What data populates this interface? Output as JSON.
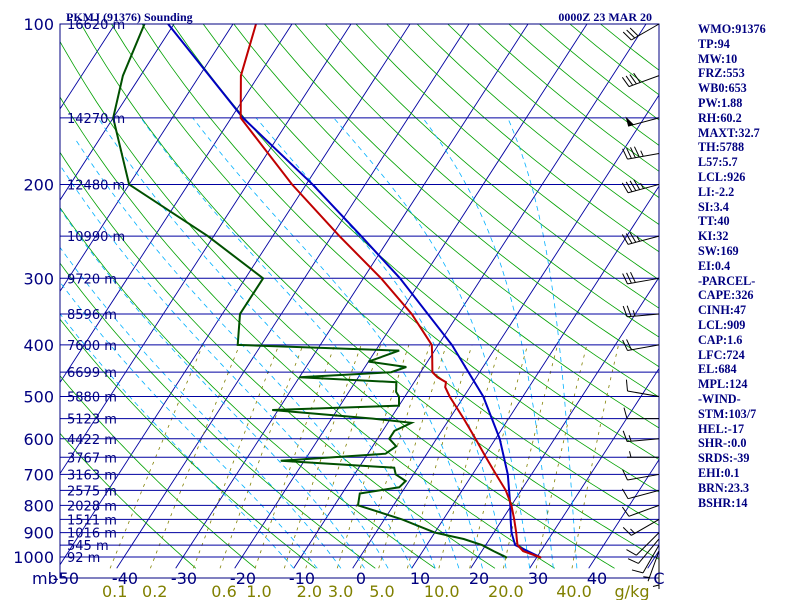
{
  "chart_data": {
    "type": "line",
    "title": "PKMJ (91376) Sounding",
    "time_label": "0000Z 23 MAR 20",
    "xlabel_units": "mb",
    "mixing_ratio_units": "g/kg",
    "pressure_levels": [
      100,
      200,
      300,
      400,
      500,
      600,
      700,
      800,
      900,
      1000
    ],
    "temperature_ticks": [
      -50,
      -40,
      -30,
      -20,
      -10,
      0,
      10,
      20,
      30,
      40
    ],
    "temperature_tick_labels": [
      "-50",
      "-40",
      "-30",
      "-20",
      "-10",
      "0",
      "10",
      "20",
      "30",
      "40"
    ],
    "mixing_ratio_ticks": [
      {
        "label": "0.1",
        "value": 0.1
      },
      {
        "label": "0.2",
        "value": 0.2
      },
      {
        "label": "0.6",
        "value": 0.6
      },
      {
        "label": "1.0",
        "value": 1.0
      },
      {
        "label": "2.0",
        "value": 2.0
      },
      {
        "label": "3.0",
        "value": 3.0
      },
      {
        "label": "5.0",
        "value": 5.0
      },
      {
        "label": "10.0",
        "value": 10.0
      },
      {
        "label": "20.0",
        "value": 20.0
      },
      {
        "label": "40.0",
        "value": 40.0
      }
    ],
    "heights": [
      {
        "p": 100,
        "label": "16620 m"
      },
      {
        "p": 150,
        "label": "14270 m"
      },
      {
        "p": 200,
        "label": "12480 m"
      },
      {
        "p": 250,
        "label": "10990 m"
      },
      {
        "p": 300,
        "label": "9720 m"
      },
      {
        "p": 350,
        "label": "8596 m"
      },
      {
        "p": 400,
        "label": "7600 m"
      },
      {
        "p": 450,
        "label": "6699 m"
      },
      {
        "p": 500,
        "label": "5880 m"
      },
      {
        "p": 550,
        "label": "5123 m"
      },
      {
        "p": 600,
        "label": "4422 m"
      },
      {
        "p": 650,
        "label": "3767 m"
      },
      {
        "p": 700,
        "label": "3163 m"
      },
      {
        "p": 750,
        "label": "2575 m"
      },
      {
        "p": 800,
        "label": "2028 m"
      },
      {
        "p": 850,
        "label": "1511 m"
      },
      {
        "p": 900,
        "label": "1016 m"
      },
      {
        "p": 950,
        "label": "545 m"
      },
      {
        "p": 1000,
        "label": "92 m"
      }
    ],
    "temperature_profile": [
      [
        1003,
        30.8
      ],
      [
        975,
        27.0
      ],
      [
        950,
        25.4
      ],
      [
        925,
        24.6
      ],
      [
        900,
        23.8
      ],
      [
        850,
        22.0
      ],
      [
        800,
        20.0
      ],
      [
        750,
        17.4
      ],
      [
        700,
        14.0
      ],
      [
        650,
        10.4
      ],
      [
        600,
        6.6
      ],
      [
        550,
        2.4
      ],
      [
        500,
        -2.4
      ],
      [
        480,
        -4.2
      ],
      [
        470,
        -4.6
      ],
      [
        460,
        -6.6
      ],
      [
        450,
        -8.0
      ],
      [
        420,
        -9.8
      ],
      [
        400,
        -11.1
      ],
      [
        350,
        -17.9
      ],
      [
        300,
        -27.0
      ],
      [
        250,
        -38.7
      ],
      [
        200,
        -52.4
      ],
      [
        150,
        -68.4
      ],
      [
        125,
        -73.0
      ],
      [
        100,
        -76.1
      ]
    ],
    "dewpoint_profile": [
      [
        1003,
        25.0
      ],
      [
        975,
        22.0
      ],
      [
        950,
        19.4
      ],
      [
        925,
        15.6
      ],
      [
        900,
        10.0
      ],
      [
        850,
        3.0
      ],
      [
        800,
        -6.0
      ],
      [
        760,
        -7.0
      ],
      [
        740,
        -1.0
      ],
      [
        720,
        -0.6
      ],
      [
        700,
        -3.0
      ],
      [
        680,
        -4.0
      ],
      [
        660,
        -24.0
      ],
      [
        640,
        -7.0
      ],
      [
        620,
        -6.0
      ],
      [
        600,
        -8.0
      ],
      [
        580,
        -8.0
      ],
      [
        560,
        -6.0
      ],
      [
        550,
        -13.0
      ],
      [
        530,
        -31.0
      ],
      [
        520,
        -10.0
      ],
      [
        500,
        -11.0
      ],
      [
        490,
        -12.0
      ],
      [
        470,
        -13.0
      ],
      [
        460,
        -30.0
      ],
      [
        450,
        -15.0
      ],
      [
        440,
        -13.0
      ],
      [
        430,
        -20.0
      ],
      [
        410,
        -16.0
      ],
      [
        400,
        -44.0
      ],
      [
        350,
        -47.0
      ],
      [
        300,
        -47.0
      ],
      [
        250,
        -61.0
      ],
      [
        200,
        -80.0
      ],
      [
        150,
        -90.0
      ],
      [
        125,
        -93.0
      ],
      [
        100,
        -95.0
      ]
    ],
    "parcel_profile": [
      [
        1003,
        30.8
      ],
      [
        950,
        25.0
      ],
      [
        900,
        23.0
      ],
      [
        850,
        21.4
      ],
      [
        800,
        19.8
      ],
      [
        700,
        16.0
      ],
      [
        600,
        10.7
      ],
      [
        500,
        3.3
      ],
      [
        400,
        -7.7
      ],
      [
        300,
        -23.8
      ],
      [
        250,
        -35.0
      ],
      [
        200,
        -48.9
      ],
      [
        150,
        -68.0
      ],
      [
        100,
        -91.0
      ]
    ],
    "wind_barbs": [
      [
        1000,
        180,
        5
      ],
      [
        975,
        200,
        5
      ],
      [
        950,
        210,
        10
      ],
      [
        925,
        220,
        10
      ],
      [
        900,
        225,
        10
      ],
      [
        850,
        240,
        15
      ],
      [
        800,
        250,
        10
      ],
      [
        750,
        255,
        10
      ],
      [
        700,
        260,
        10
      ],
      [
        650,
        270,
        5
      ],
      [
        600,
        265,
        15
      ],
      [
        550,
        270,
        10
      ],
      [
        500,
        280,
        10
      ],
      [
        400,
        260,
        20
      ],
      [
        350,
        265,
        25
      ],
      [
        300,
        260,
        30
      ],
      [
        250,
        255,
        35
      ],
      [
        200,
        255,
        45
      ],
      [
        175,
        260,
        45
      ],
      [
        150,
        255,
        50
      ],
      [
        125,
        250,
        40
      ],
      [
        100,
        240,
        30
      ]
    ]
  },
  "indices": [
    "WMO:91376",
    "TP:94",
    "MW:10",
    "FRZ:553",
    "WB0:653",
    "PW:1.88",
    "RH:60.2",
    "MAXT:32.7",
    "TH:5788",
    "L57:5.7",
    "LCL:926",
    "LI:-2.2",
    "SI:3.4",
    "TT:40",
    "KI:32",
    "SW:169",
    "EI:0.4",
    "-PARCEL-",
    "CAPE:326",
    "CINH:47",
    "LCL:909",
    "CAP:1.6",
    "LFC:724",
    "EL:684",
    "MPL:124",
    "-WIND-",
    "STM:103/7",
    "HEL:-17",
    "SHR-:0.0",
    "SRDS:-39",
    "EHI:0.1",
    "BRN:23.3",
    "BSHR:14"
  ],
  "colors": {
    "isobar": "#0000a0",
    "isotherm": "#0000a0",
    "dry_adiabat": "#00a000",
    "moist_adiabat": "#00b0ff",
    "mixing_ratio": "#808000",
    "temperature": "#c00000",
    "dewpoint": "#005000",
    "parcel": "#0000c0",
    "text": "#000080",
    "wind": "#000000"
  }
}
